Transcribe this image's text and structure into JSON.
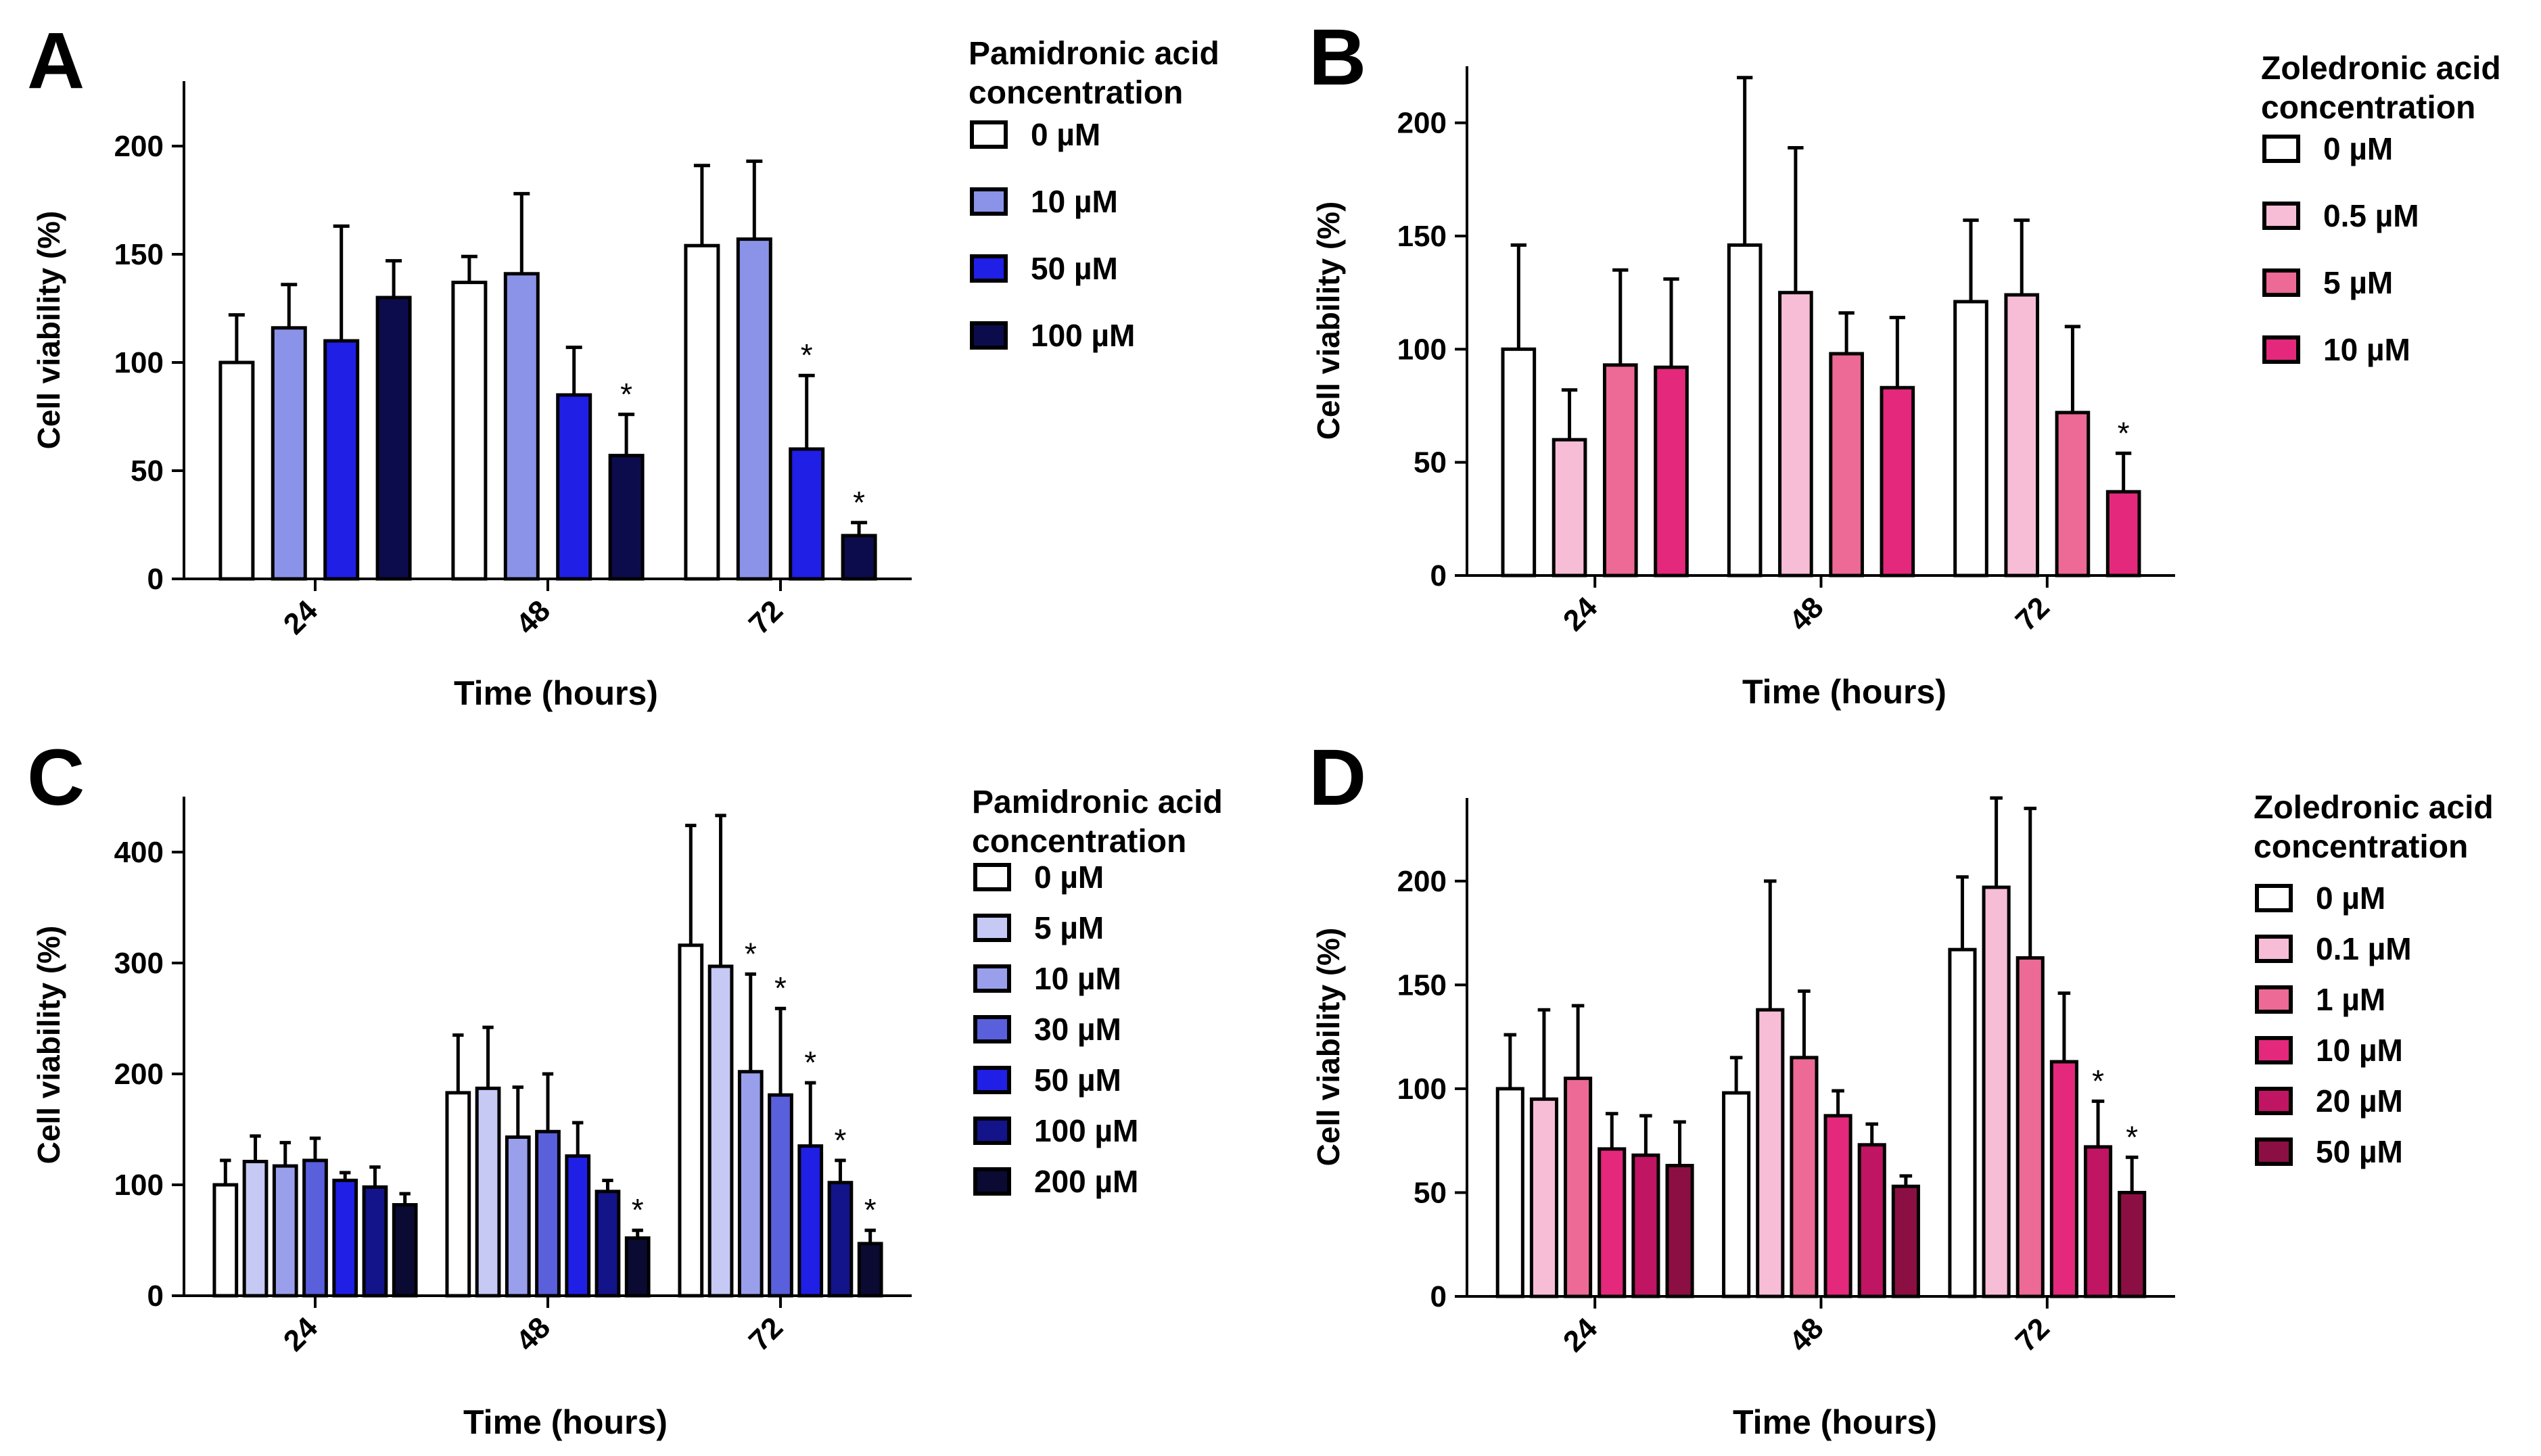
{
  "chart_data": [
    {
      "panel": "A",
      "type": "bar",
      "title": "",
      "xlabel": "Time (hours)",
      "ylabel": "Cell viability (%)",
      "categories": [
        "24",
        "48",
        "72"
      ],
      "ylim": [
        0,
        230
      ],
      "yticks": [
        "0",
        "50",
        "100",
        "150",
        "200"
      ],
      "legend_title_lines": [
        "Pamidronic acid",
        "concentration"
      ],
      "series": [
        {
          "name": "0 µM",
          "color": "#ffffff",
          "values": [
            100,
            137,
            154
          ],
          "errors": [
            22,
            12,
            37
          ],
          "sig": [
            false,
            false,
            false
          ]
        },
        {
          "name": "10 µM",
          "color": "#8b93e8",
          "values": [
            116,
            141,
            157
          ],
          "errors": [
            20,
            37,
            36
          ],
          "sig": [
            false,
            false,
            false
          ]
        },
        {
          "name": "50 µM",
          "color": "#1f1fe6",
          "values": [
            110,
            85,
            60
          ],
          "errors": [
            53,
            22,
            34
          ],
          "sig": [
            false,
            false,
            true
          ]
        },
        {
          "name": "100 µM",
          "color": "#0c0c4d",
          "values": [
            130,
            57,
            20
          ],
          "errors": [
            17,
            19,
            6
          ],
          "sig": [
            false,
            true,
            true
          ]
        }
      ]
    },
    {
      "panel": "B",
      "type": "bar",
      "title": "",
      "xlabel": "Time (hours)",
      "ylabel": "Cell viability (%)",
      "categories": [
        "24",
        "48",
        "72"
      ],
      "ylim": [
        0,
        225
      ],
      "yticks": [
        "0",
        "50",
        "100",
        "150",
        "200"
      ],
      "legend_title_lines": [
        "Zoledronic acid",
        "concentration"
      ],
      "series": [
        {
          "name": "0 µM",
          "color": "#ffffff",
          "values": [
            100,
            146,
            121
          ],
          "errors": [
            46,
            74,
            36
          ],
          "sig": [
            false,
            false,
            false
          ]
        },
        {
          "name": "0.5 µM",
          "color": "#f7bdd6",
          "values": [
            60,
            125,
            124
          ],
          "errors": [
            22,
            64,
            33
          ],
          "sig": [
            false,
            false,
            false
          ]
        },
        {
          "name": "5 µM",
          "color": "#ec6a95",
          "values": [
            93,
            98,
            72
          ],
          "errors": [
            42,
            18,
            38
          ],
          "sig": [
            false,
            false,
            false
          ]
        },
        {
          "name": "10 µM",
          "color": "#e4287c",
          "values": [
            92,
            83,
            37
          ],
          "errors": [
            39,
            31,
            17
          ],
          "sig": [
            false,
            false,
            true
          ]
        }
      ]
    },
    {
      "panel": "C",
      "type": "bar",
      "title": "",
      "xlabel": "Time (hours)",
      "ylabel": "Cell viability (%)",
      "categories": [
        "24",
        "48",
        "72"
      ],
      "ylim": [
        0,
        450
      ],
      "yticks": [
        "0",
        "100",
        "200",
        "300",
        "400"
      ],
      "legend_title_lines": [
        "Pamidronic acid",
        "concentration"
      ],
      "series": [
        {
          "name": "0 µM",
          "color": "#ffffff",
          "values": [
            100,
            183,
            316
          ],
          "errors": [
            22,
            52,
            108
          ],
          "sig": [
            false,
            false,
            false
          ]
        },
        {
          "name": "5 µM",
          "color": "#c5c9f4",
          "values": [
            121,
            187,
            297
          ],
          "errors": [
            23,
            55,
            136
          ],
          "sig": [
            false,
            false,
            false
          ]
        },
        {
          "name": "10 µM",
          "color": "#9a9fec",
          "values": [
            117,
            143,
            202
          ],
          "errors": [
            21,
            45,
            88
          ],
          "sig": [
            false,
            false,
            true
          ]
        },
        {
          "name": "30 µM",
          "color": "#5a5fdc",
          "values": [
            122,
            148,
            181
          ],
          "errors": [
            20,
            52,
            78
          ],
          "sig": [
            false,
            false,
            true
          ]
        },
        {
          "name": "50 µM",
          "color": "#1f1fe6",
          "values": [
            104,
            126,
            135
          ],
          "errors": [
            7,
            30,
            57
          ],
          "sig": [
            false,
            false,
            true
          ]
        },
        {
          "name": "100 µM",
          "color": "#13138a",
          "values": [
            98,
            94,
            102
          ],
          "errors": [
            18,
            10,
            20
          ],
          "sig": [
            false,
            false,
            true
          ]
        },
        {
          "name": "200 µM",
          "color": "#0a0a33",
          "values": [
            82,
            52,
            47
          ],
          "errors": [
            10,
            7,
            12
          ],
          "sig": [
            false,
            true,
            true
          ]
        }
      ]
    },
    {
      "panel": "D",
      "type": "bar",
      "title": "",
      "xlabel": "Time (hours)",
      "ylabel": "Cell viability (%)",
      "categories": [
        "24",
        "48",
        "72"
      ],
      "ylim": [
        0,
        240
      ],
      "yticks": [
        "0",
        "50",
        "100",
        "150",
        "200"
      ],
      "legend_title_lines": [
        "Zoledronic acid",
        "concentration"
      ],
      "series": [
        {
          "name": "0 µM",
          "color": "#ffffff",
          "values": [
            100,
            98,
            167
          ],
          "errors": [
            26,
            17,
            35
          ],
          "sig": [
            false,
            false,
            false
          ]
        },
        {
          "name": "0.1 µM",
          "color": "#f7bdd6",
          "values": [
            95,
            138,
            197
          ],
          "errors": [
            43,
            62,
            43
          ],
          "sig": [
            false,
            false,
            false
          ]
        },
        {
          "name": "1 µM",
          "color": "#ec6a95",
          "values": [
            105,
            115,
            163
          ],
          "errors": [
            35,
            32,
            72
          ],
          "sig": [
            false,
            false,
            false
          ]
        },
        {
          "name": "10 µM",
          "color": "#e4287c",
          "values": [
            71,
            87,
            113
          ],
          "errors": [
            17,
            12,
            33
          ],
          "sig": [
            false,
            false,
            false
          ]
        },
        {
          "name": "20 µM",
          "color": "#c01563",
          "values": [
            68,
            73,
            72
          ],
          "errors": [
            19,
            10,
            22
          ],
          "sig": [
            false,
            false,
            true
          ]
        },
        {
          "name": "50 µM",
          "color": "#8c0f43",
          "values": [
            63,
            53,
            50
          ],
          "errors": [
            21,
            5,
            17
          ],
          "sig": [
            false,
            false,
            true
          ]
        }
      ]
    }
  ]
}
